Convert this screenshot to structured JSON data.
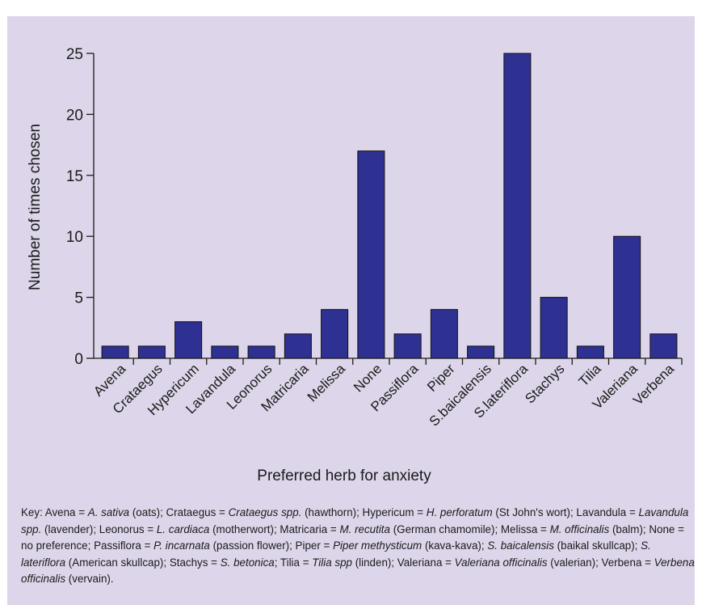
{
  "colors": {
    "panel_background": "#ddd6ea",
    "bar_fill": "#2e3192",
    "bar_stroke": "#111111"
  },
  "chart_data": {
    "type": "bar",
    "title": "",
    "xlabel": "Preferred herb for anxiety",
    "ylabel": "Number of times chosen",
    "ylim": [
      0,
      25
    ],
    "yticks": [
      0,
      5,
      10,
      15,
      20,
      25
    ],
    "grid": false,
    "categories": [
      "Avena",
      "Crataegus",
      "Hypericum",
      "Lavandula",
      "Leonorus",
      "Matricaria",
      "Melissa",
      "None",
      "Passiflora",
      "Piper",
      "S.baicalensis",
      "S.lateriflora",
      "Stachys",
      "Tilia",
      "Valeriana",
      "Verbena"
    ],
    "values": [
      1,
      1,
      3,
      1,
      1,
      2,
      4,
      17,
      2,
      4,
      1,
      25,
      5,
      1,
      10,
      2
    ]
  },
  "key": {
    "segments": [
      {
        "t": "Key: Avena = "
      },
      {
        "t": "A. sativa",
        "i": true
      },
      {
        "t": " (oats); Crataegus = "
      },
      {
        "t": "Crataegus spp.",
        "i": true
      },
      {
        "t": " (hawthorn); Hypericum = "
      },
      {
        "t": "H. perforatum",
        "i": true
      },
      {
        "t": " (St John's wort); Lavandula = "
      },
      {
        "t": "Lavandula spp.",
        "i": true
      },
      {
        "t": " (lavender); Leonorus = "
      },
      {
        "t": "L. cardiaca",
        "i": true
      },
      {
        "t": " (motherwort); Matricaria = "
      },
      {
        "t": "M. recutita",
        "i": true
      },
      {
        "t": " (German chamomile); Melissa = "
      },
      {
        "t": "M. officinalis",
        "i": true
      },
      {
        "t": " (balm); None = no preference; Passiflora = "
      },
      {
        "t": "P. incarnata",
        "i": true
      },
      {
        "t": " (passion flower); Piper = "
      },
      {
        "t": "Piper methysticum",
        "i": true
      },
      {
        "t": " (kava-kava); "
      },
      {
        "t": "S. baicalensis",
        "i": true
      },
      {
        "t": " (baikal skullcap); "
      },
      {
        "t": "S. lateriflora",
        "i": true
      },
      {
        "t": " (American skullcap); Stachys = "
      },
      {
        "t": "S. betonica",
        "i": true
      },
      {
        "t": "; Tilia = "
      },
      {
        "t": "Tilia spp",
        "i": true
      },
      {
        "t": " (linden); Valeriana = "
      },
      {
        "t": "Valeriana officinalis",
        "i": true
      },
      {
        "t": " (valerian); Verbena = "
      },
      {
        "t": "Verbena officinalis",
        "i": true
      },
      {
        "t": " (vervain)."
      }
    ]
  }
}
